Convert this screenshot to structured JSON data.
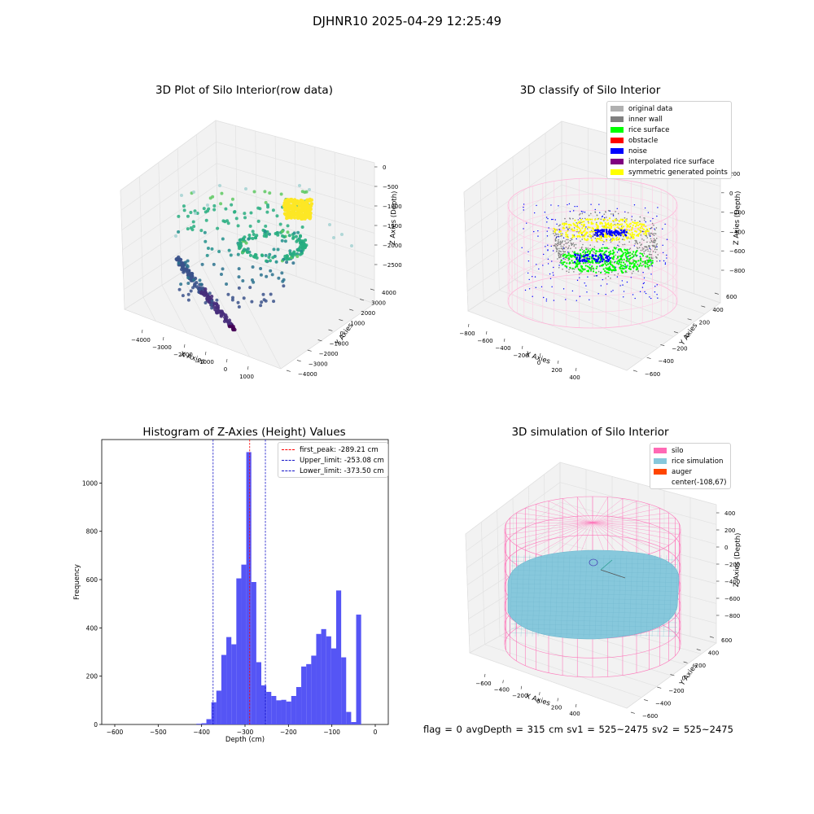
{
  "page_title": "DJHNR10 2025-04-29 12:25:49",
  "footer": "flag = 0    avgDepth = 315 cm  sv1 = 525~2475  sv2 = 525~2475",
  "colors": {
    "histogram_bar": "#5050f5",
    "first_peak_line": "#ff0000",
    "limit_lines": "#1515c8",
    "silo_wire": "#ff69b4",
    "rice_sim": "#87c8dc",
    "auger": "#ff4500",
    "classify_orig": "#b0b0b0",
    "classify_wall": "#808080",
    "classify_rice": "#00ff00",
    "classify_obstacle": "#ff0000",
    "classify_noise": "#0000ff",
    "classify_interp": "#800080",
    "classify_sym": "#ffff00"
  },
  "chart_data": [
    {
      "type": "scatter",
      "subtype": "3d",
      "title": "3D Plot of Silo Interior(row data)",
      "xlabel": "X Axies",
      "ylabel": "Y Axies",
      "zlabel": "Z Axies (Depth)",
      "x_ticks": [
        "−4000",
        "−3000",
        "−2000",
        "−1000",
        "0",
        "1000"
      ],
      "y_ticks": [
        "−4000",
        "−3000",
        "−2000",
        "−1000",
        "0",
        "1000",
        "2000",
        "3000",
        "4000"
      ],
      "z_ticks": [
        "−2500",
        "−2000",
        "−1500",
        "−1000",
        "−500",
        "0"
      ],
      "colormap": "viridis"
    },
    {
      "type": "scatter",
      "subtype": "3d",
      "title": "3D classify of Silo Interior",
      "xlabel": "X Axies",
      "ylabel": "Y Axies",
      "zlabel": "Z Axies (Depth)",
      "x_ticks": [
        "−800",
        "−600",
        "−400",
        "−200",
        "0",
        "200",
        "400"
      ],
      "y_ticks": [
        "−600",
        "−400",
        "−200",
        "0",
        "200",
        "400",
        "600"
      ],
      "z_ticks": [
        "−800",
        "−600",
        "−400",
        "−200",
        "0",
        "200"
      ],
      "legend": [
        "original data",
        "inner wall",
        "rice surface",
        "obstacle",
        "noise",
        "interpolated rice surface",
        "symmetric generated points"
      ],
      "legend_position": "top-right"
    },
    {
      "type": "bar",
      "subtype": "histogram",
      "title": "Histogram of Z-Axies (Height) Values",
      "xlabel": "Depth (cm)",
      "ylabel": "Frequency",
      "xlim": [
        -630,
        30
      ],
      "ylim": [
        0,
        1180
      ],
      "x_ticks": [
        "−600",
        "−500",
        "−400",
        "−300",
        "−200",
        "−100",
        "0"
      ],
      "y_ticks": [
        "0",
        "200",
        "400",
        "600",
        "800",
        "1000"
      ],
      "bin_width": 11.5,
      "bins_start": [
        -412,
        -400.5,
        -389,
        -377.5,
        -366,
        -354.5,
        -343,
        -331.5,
        -320,
        -308.5,
        -297,
        -285.5,
        -274,
        -262.5,
        -251,
        -239.5,
        -228,
        -216.5,
        -205,
        -193.5,
        -182,
        -170.5,
        -159,
        -147.5,
        -136,
        -124.5,
        -113,
        -101.5,
        -90,
        -78.5,
        -67,
        -55.5,
        -44,
        -32.5,
        -21,
        -9.5
      ],
      "counts": [
        3,
        5,
        22,
        92,
        140,
        288,
        362,
        332,
        605,
        662,
        1128,
        590,
        258,
        162,
        135,
        118,
        100,
        102,
        95,
        118,
        155,
        240,
        250,
        285,
        375,
        395,
        365,
        315,
        555,
        278,
        52,
        10,
        455,
        0,
        0,
        0
      ],
      "lines": [
        {
          "label": "first_peak: -289.21 cm",
          "x": -289.21
        },
        {
          "label": "Upper_limit: -253.08 cm",
          "x": -253.08
        },
        {
          "label": "Lower_limit: -373.50 cm",
          "x": -373.5
        }
      ],
      "legend_position": "top-right"
    },
    {
      "type": "scatter",
      "subtype": "3d-surface",
      "title": "3D simulation of Silo Interior",
      "xlabel": "X Axies",
      "ylabel": "Y Axies",
      "zlabel": "Z Axies (Depth)",
      "x_ticks": [
        "−600",
        "−400",
        "−200",
        "0",
        "200",
        "400"
      ],
      "y_ticks": [
        "−600",
        "−400",
        "−200",
        "0",
        "200",
        "400",
        "600"
      ],
      "z_ticks": [
        "−800",
        "−600",
        "−400",
        "−200",
        "0",
        "200",
        "400"
      ],
      "legend": [
        "silo",
        "rice simulation",
        "auger",
        "center(-108,67)"
      ],
      "legend_position": "top-right"
    }
  ]
}
